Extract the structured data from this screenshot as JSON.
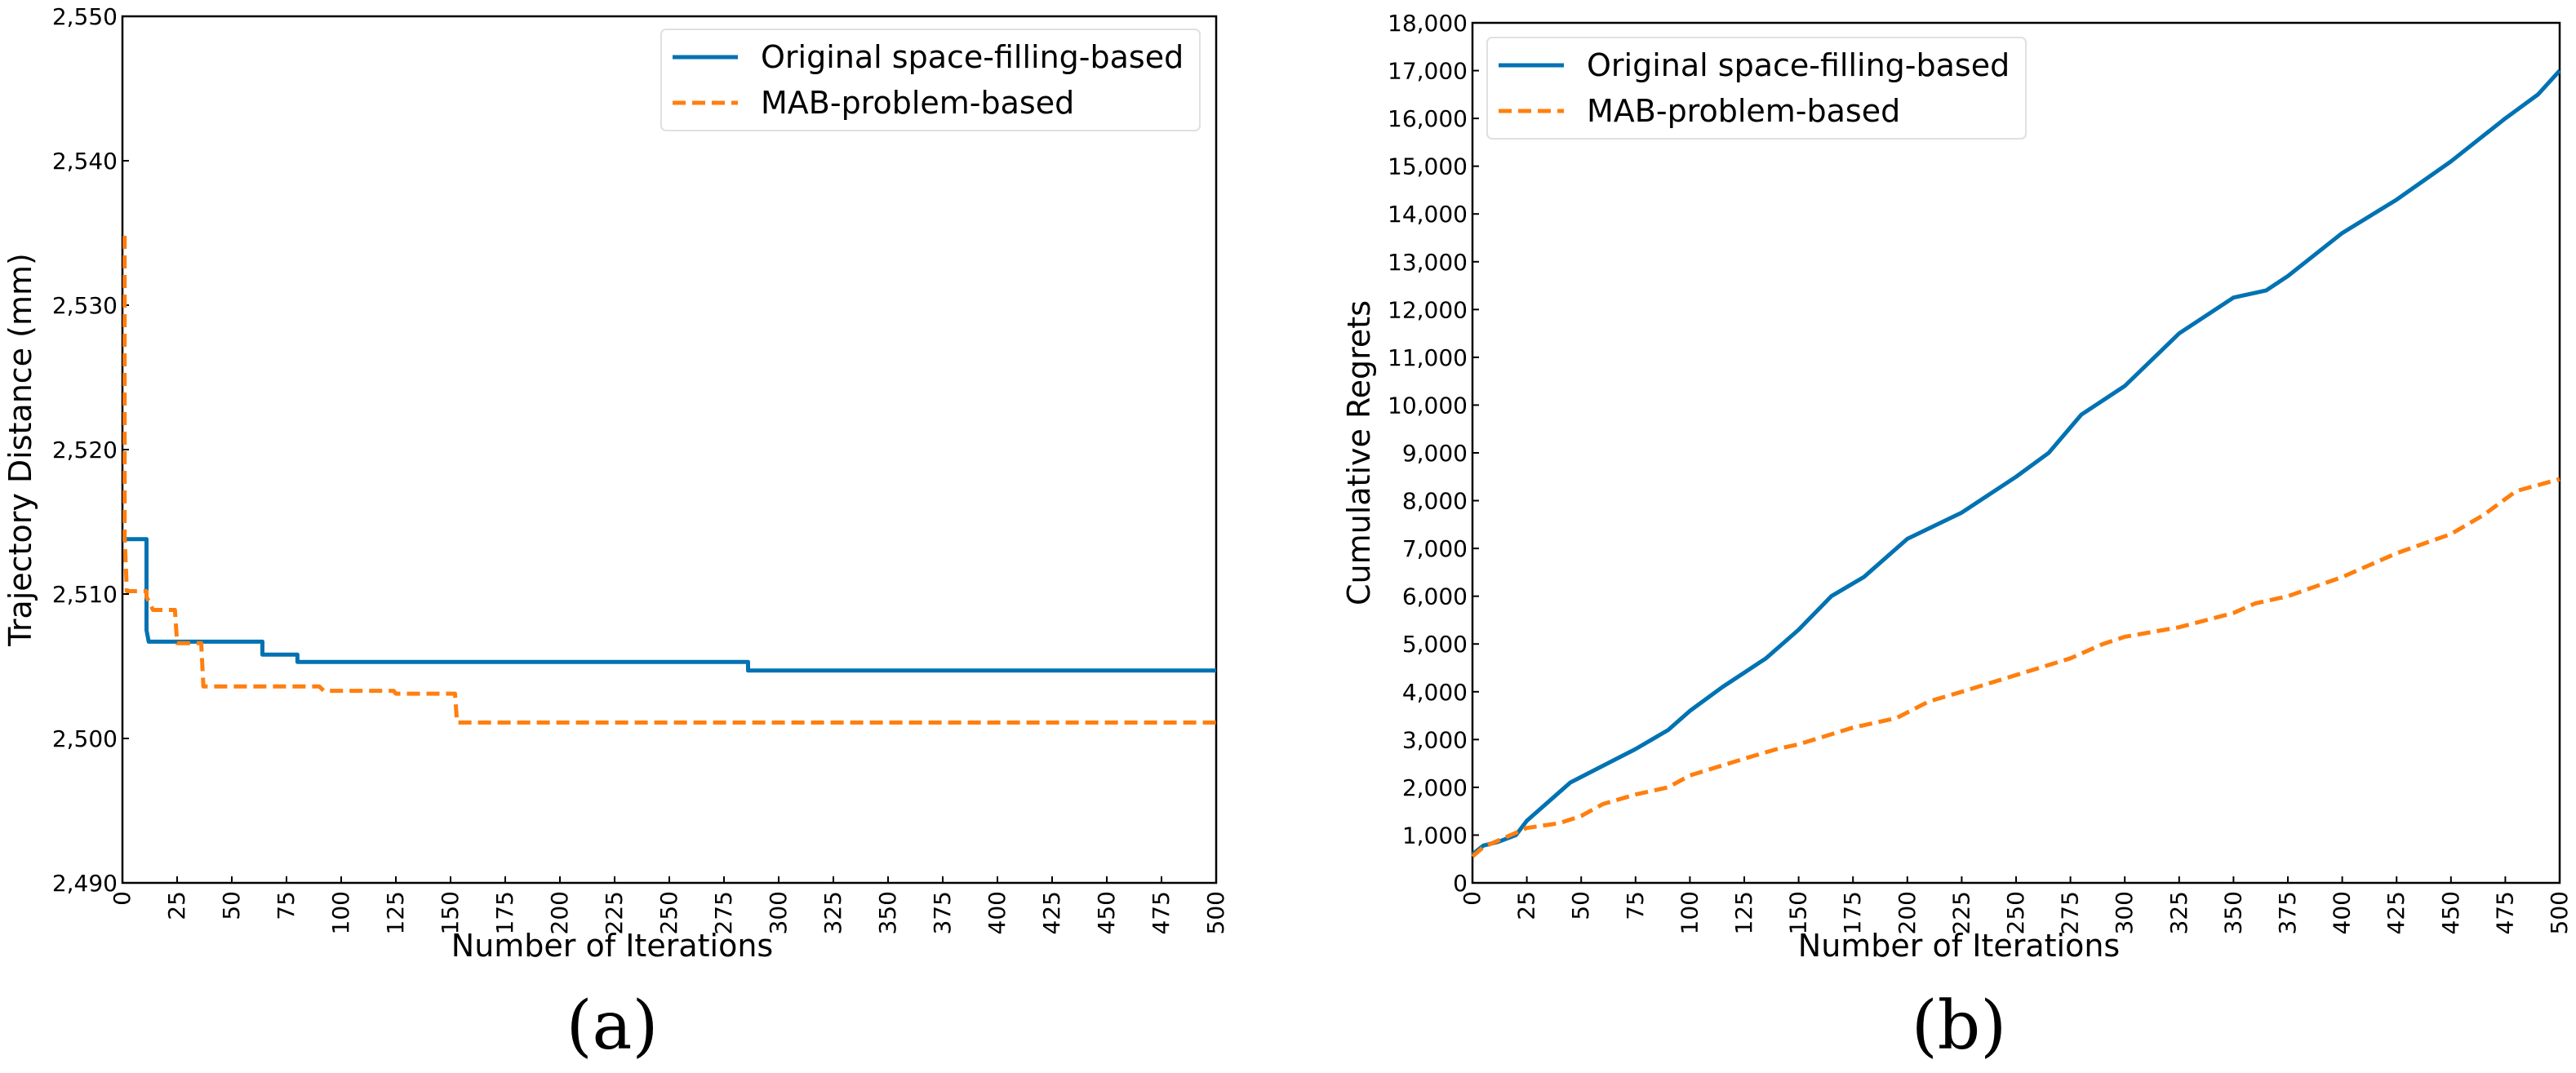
{
  "chart_data": [
    {
      "id": "a",
      "type": "line",
      "panel_label": "(a)",
      "title": "",
      "xlabel": "Number of Iterations",
      "ylabel": "Trajectory Distance (mm)",
      "xlim": [
        0,
        500
      ],
      "ylim": [
        2490,
        2550
      ],
      "xticks": [
        0,
        25,
        50,
        75,
        100,
        125,
        150,
        175,
        200,
        225,
        250,
        275,
        300,
        325,
        350,
        375,
        400,
        425,
        450,
        475,
        500
      ],
      "yticks": [
        2490,
        2500,
        2510,
        2520,
        2530,
        2540,
        2550
      ],
      "ytick_labels": [
        "2,490",
        "2,500",
        "2,510",
        "2,520",
        "2,530",
        "2,540",
        "2,550"
      ],
      "grid": false,
      "legend": "top-right",
      "series": [
        {
          "name": "Original space-filling-based",
          "color": "#0072b2",
          "style": "solid",
          "step": true,
          "points": [
            [
              0,
              2513.8
            ],
            [
              11,
              2513.8
            ],
            [
              11,
              2507.5
            ],
            [
              12,
              2506.7
            ],
            [
              64,
              2506.7
            ],
            [
              64,
              2505.8
            ],
            [
              80,
              2505.8
            ],
            [
              80,
              2505.3
            ],
            [
              286,
              2505.3
            ],
            [
              286,
              2504.7
            ],
            [
              500,
              2504.7
            ]
          ]
        },
        {
          "name": "MAB-problem-based",
          "color": "#ff7f0e",
          "style": "dashed",
          "step": true,
          "points": [
            [
              1,
              2534.8
            ],
            [
              1,
              2514
            ],
            [
              2,
              2510.2
            ],
            [
              11,
              2510.2
            ],
            [
              11,
              2509.8
            ],
            [
              14,
              2508.9
            ],
            [
              24,
              2508.9
            ],
            [
              25,
              2506.6
            ],
            [
              36,
              2506.6
            ],
            [
              37,
              2503.6
            ],
            [
              90,
              2503.6
            ],
            [
              92,
              2503.3
            ],
            [
              124,
              2503.3
            ],
            [
              125,
              2503.1
            ],
            [
              152,
              2503.1
            ],
            [
              153,
              2501.1
            ],
            [
              500,
              2501.1
            ]
          ]
        }
      ]
    },
    {
      "id": "b",
      "type": "line",
      "panel_label": "(b)",
      "title": "",
      "xlabel": "Number of Iterations",
      "ylabel": "Cumulative Regrets",
      "xlim": [
        0,
        500
      ],
      "ylim": [
        0,
        18000
      ],
      "xticks": [
        0,
        25,
        50,
        75,
        100,
        125,
        150,
        175,
        200,
        225,
        250,
        275,
        300,
        325,
        350,
        375,
        400,
        425,
        450,
        475,
        500
      ],
      "yticks": [
        0,
        1000,
        2000,
        3000,
        4000,
        5000,
        6000,
        7000,
        8000,
        9000,
        10000,
        11000,
        12000,
        13000,
        14000,
        15000,
        16000,
        17000,
        18000
      ],
      "ytick_labels": [
        "0",
        "1,000",
        "2,000",
        "3,000",
        "4,000",
        "5,000",
        "6,000",
        "7,000",
        "8,000",
        "9,000",
        "10,000",
        "11,000",
        "12,000",
        "13,000",
        "14,000",
        "15,000",
        "16,000",
        "17,000",
        "18,000"
      ],
      "grid": false,
      "legend": "top-left",
      "series": [
        {
          "name": "Original space-filling-based",
          "color": "#0072b2",
          "style": "solid",
          "step": false,
          "points": [
            [
              0,
              600
            ],
            [
              5,
              780
            ],
            [
              12,
              860
            ],
            [
              20,
              1000
            ],
            [
              25,
              1300
            ],
            [
              35,
              1700
            ],
            [
              45,
              2100
            ],
            [
              60,
              2450
            ],
            [
              75,
              2800
            ],
            [
              90,
              3200
            ],
            [
              100,
              3600
            ],
            [
              115,
              4100
            ],
            [
              125,
              4400
            ],
            [
              135,
              4700
            ],
            [
              150,
              5300
            ],
            [
              165,
              6000
            ],
            [
              180,
              6400
            ],
            [
              200,
              7200
            ],
            [
              225,
              7750
            ],
            [
              250,
              8500
            ],
            [
              265,
              9000
            ],
            [
              280,
              9800
            ],
            [
              300,
              10400
            ],
            [
              325,
              11500
            ],
            [
              350,
              12250
            ],
            [
              365,
              12400
            ],
            [
              375,
              12700
            ],
            [
              400,
              13600
            ],
            [
              425,
              14300
            ],
            [
              450,
              15100
            ],
            [
              475,
              16000
            ],
            [
              490,
              16500
            ],
            [
              500,
              17000
            ]
          ]
        },
        {
          "name": "MAB-problem-based",
          "color": "#ff7f0e",
          "style": "dashed",
          "step": false,
          "points": [
            [
              0,
              550
            ],
            [
              5,
              750
            ],
            [
              15,
              950
            ],
            [
              25,
              1150
            ],
            [
              40,
              1250
            ],
            [
              50,
              1400
            ],
            [
              60,
              1650
            ],
            [
              75,
              1850
            ],
            [
              90,
              2000
            ],
            [
              100,
              2250
            ],
            [
              125,
              2600
            ],
            [
              140,
              2800
            ],
            [
              150,
              2900
            ],
            [
              175,
              3250
            ],
            [
              195,
              3450
            ],
            [
              210,
              3800
            ],
            [
              225,
              4000
            ],
            [
              250,
              4350
            ],
            [
              275,
              4700
            ],
            [
              290,
              5000
            ],
            [
              300,
              5150
            ],
            [
              325,
              5350
            ],
            [
              350,
              5650
            ],
            [
              360,
              5850
            ],
            [
              375,
              6000
            ],
            [
              400,
              6400
            ],
            [
              425,
              6900
            ],
            [
              450,
              7300
            ],
            [
              465,
              7700
            ],
            [
              480,
              8200
            ],
            [
              500,
              8450
            ]
          ]
        }
      ]
    }
  ]
}
